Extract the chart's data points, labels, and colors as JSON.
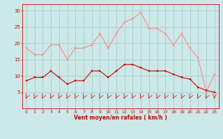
{
  "hours": [
    0,
    1,
    2,
    3,
    4,
    5,
    6,
    7,
    8,
    9,
    10,
    11,
    12,
    13,
    14,
    15,
    16,
    17,
    18,
    19,
    20,
    21,
    22,
    23
  ],
  "rafales": [
    18.5,
    16.5,
    16.5,
    19.5,
    19.5,
    15.0,
    18.5,
    18.5,
    19.5,
    23.0,
    18.5,
    23.0,
    26.5,
    27.5,
    29.5,
    24.5,
    24.5,
    23.0,
    19.5,
    23.0,
    18.5,
    15.5,
    5.0,
    10.5
  ],
  "moyen": [
    8.5,
    9.5,
    9.5,
    11.5,
    9.5,
    7.5,
    8.5,
    8.5,
    11.5,
    11.5,
    9.5,
    11.5,
    13.5,
    13.5,
    12.5,
    11.5,
    11.5,
    11.5,
    10.5,
    9.5,
    9.0,
    6.5,
    5.5,
    5.0
  ],
  "bg_color": "#cce8e8",
  "grid_color": "#aacccc",
  "rafales_color": "#ff8888",
  "moyen_color": "#cc0000",
  "xlabel": "Vent moyen/en rafales ( km/h )",
  "xlabel_color": "#cc0000",
  "tick_color": "#cc0000",
  "spine_color": "#cc0000",
  "ylim": [
    0,
    32
  ],
  "yticks": [
    5,
    10,
    15,
    20,
    25,
    30
  ],
  "xlim": [
    -0.5,
    23.5
  ]
}
